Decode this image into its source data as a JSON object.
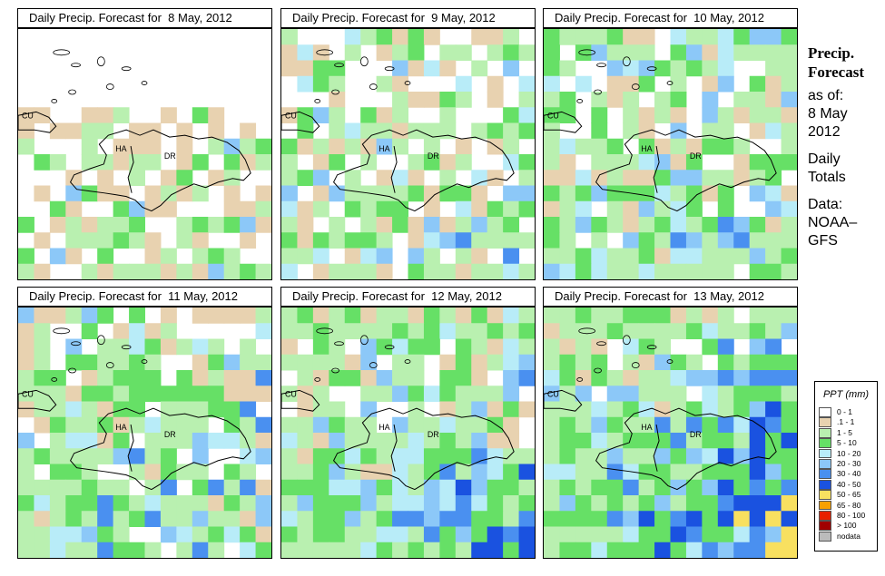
{
  "panels": [
    {
      "title": "Daily Precip. Forecast for  8 May, 2012",
      "seed": 11,
      "intensity": 0.1,
      "blueBias": 0.0
    },
    {
      "title": "Daily Precip. Forecast for  9 May, 2012",
      "seed": 23,
      "intensity": 0.25,
      "blueBias": 0.1
    },
    {
      "title": "Daily Precip. Forecast for  10 May, 2012",
      "seed": 37,
      "intensity": 0.45,
      "blueBias": 0.1
    },
    {
      "title": "Daily Precip. Forecast for  11 May, 2012",
      "seed": 41,
      "intensity": 0.45,
      "blueBias": 0.15
    },
    {
      "title": "Daily Precip. Forecast for  12 May, 2012",
      "seed": 53,
      "intensity": 0.6,
      "blueBias": 0.3
    },
    {
      "title": "Daily Precip. Forecast for  13 May, 2012",
      "seed": 67,
      "intensity": 0.75,
      "blueBias": 0.6
    }
  ],
  "map_labels": {
    "cuba": "CU",
    "haiti": "HA",
    "dominican_republic": "DR"
  },
  "side": {
    "heading1": "Precip.",
    "heading2": "Forecast",
    "asof": "as of:",
    "date1": "8 May",
    "date2": "2012",
    "totals1": "Daily",
    "totals2": "Totals",
    "data1": "Data:",
    "data2": "NOAA–",
    "data3": "GFS"
  },
  "legend": {
    "title": "PPT (mm)",
    "items": [
      {
        "label": "0 - 1",
        "color": "#ffffff"
      },
      {
        "label": ".1 - 1",
        "color": "#e8d2b0"
      },
      {
        "label": "1 - 5",
        "color": "#b9f0b0"
      },
      {
        "label": "5 - 10",
        "color": "#66e066"
      },
      {
        "label": "10 - 20",
        "color": "#b8ecf8"
      },
      {
        "label": "20 - 30",
        "color": "#8cc8f8"
      },
      {
        "label": "30 - 40",
        "color": "#4a90f0"
      },
      {
        "label": "40 - 50",
        "color": "#1a52e0"
      },
      {
        "label": "50 - 65",
        "color": "#f8e060"
      },
      {
        "label": "65 - 80",
        "color": "#f8a000"
      },
      {
        "label": "80 - 100",
        "color": "#e82000"
      },
      {
        "label": "> 100",
        "color": "#a00000"
      },
      {
        "label": "nodata",
        "color": "#bbbbbb"
      }
    ]
  }
}
